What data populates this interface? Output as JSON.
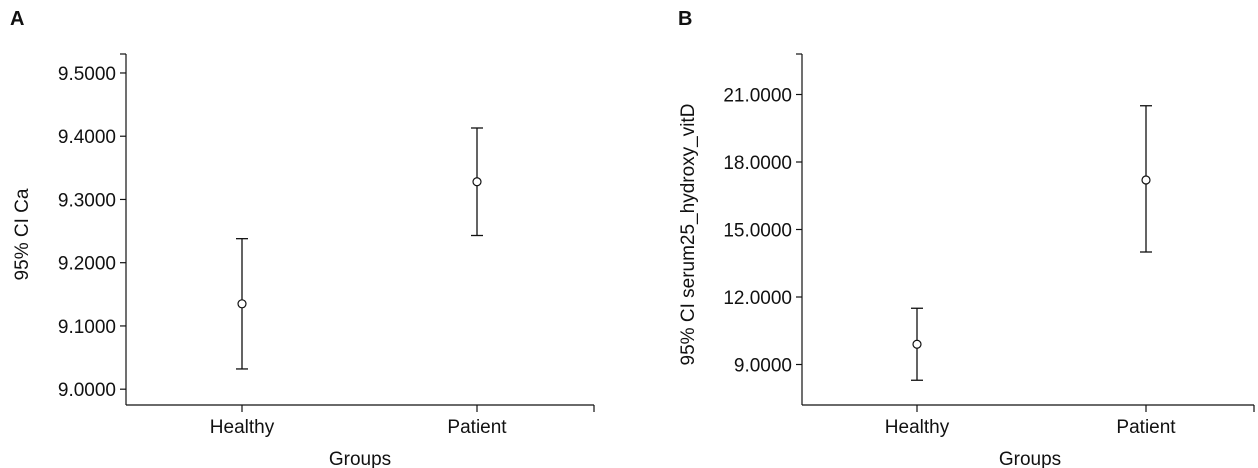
{
  "chart_data": [
    {
      "panel": "A",
      "type": "errorbar",
      "xlabel": "Groups",
      "ylabel": "95% CI Ca",
      "categories": [
        "Healthy",
        "Patient"
      ],
      "mean": [
        9.135,
        9.328
      ],
      "ci_lower": [
        9.032,
        9.243
      ],
      "ci_upper": [
        9.238,
        9.413
      ],
      "yticks": [
        "9.0000",
        "9.1000",
        "9.2000",
        "9.3000",
        "9.4000",
        "9.5000"
      ],
      "ytick_values": [
        9.0,
        9.1,
        9.2,
        9.3,
        9.4,
        9.5
      ],
      "ylim": [
        8.975,
        9.53
      ],
      "grid": false
    },
    {
      "panel": "B",
      "type": "errorbar",
      "xlabel": "Groups",
      "ylabel": "95% CI serum25_hydroxy_vitD",
      "categories": [
        "Healthy",
        "Patient"
      ],
      "mean": [
        9.9,
        17.2
      ],
      "ci_lower": [
        8.3,
        14.0
      ],
      "ci_upper": [
        11.5,
        20.5
      ],
      "yticks": [
        "9.0000",
        "12.0000",
        "15.0000",
        "18.0000",
        "21.0000"
      ],
      "ytick_values": [
        9.0,
        12.0,
        15.0,
        18.0,
        21.0
      ],
      "ylim": [
        7.2,
        22.8
      ],
      "grid": false
    }
  ]
}
